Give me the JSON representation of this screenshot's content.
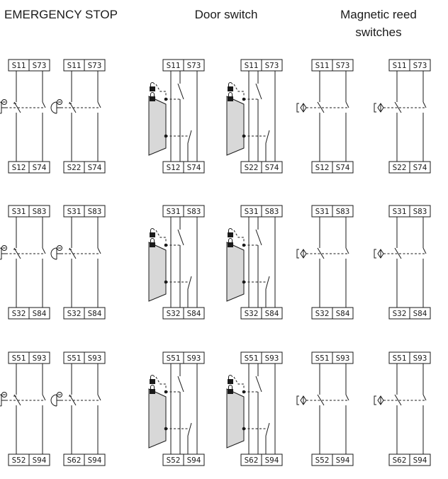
{
  "headers": {
    "emergency_stop": "EMERGENCY STOP",
    "door_switch": "Door switch",
    "reed_line1": "Magnetic reed",
    "reed_line2": "switches"
  },
  "groups": [
    {
      "type": "estop",
      "rows": [
        {
          "units": [
            {
              "top": [
                "S11",
                "S73"
              ],
              "bottom": [
                "S12",
                "S74"
              ]
            },
            {
              "top": [
                "S11",
                "S73"
              ],
              "bottom": [
                "S22",
                "S74"
              ]
            }
          ]
        },
        {
          "units": [
            {
              "top": [
                "S31",
                "S83"
              ],
              "bottom": [
                "S32",
                "S84"
              ]
            },
            {
              "top": [
                "S31",
                "S83"
              ],
              "bottom": [
                "S32",
                "S84"
              ]
            }
          ]
        },
        {
          "units": [
            {
              "top": [
                "S51",
                "S93"
              ],
              "bottom": [
                "S52",
                "S94"
              ]
            },
            {
              "top": [
                "S51",
                "S93"
              ],
              "bottom": [
                "S62",
                "S94"
              ]
            }
          ]
        }
      ]
    },
    {
      "type": "door",
      "rows": [
        {
          "units": [
            {
              "top": [
                "S11",
                "S73"
              ],
              "bottom": [
                "S12",
                "S74"
              ]
            },
            {
              "top": [
                "S11",
                "S73"
              ],
              "bottom": [
                "S22",
                "S74"
              ]
            }
          ]
        },
        {
          "units": [
            {
              "top": [
                "S31",
                "S83"
              ],
              "bottom": [
                "S32",
                "S84"
              ]
            },
            {
              "top": [
                "S31",
                "S83"
              ],
              "bottom": [
                "S32",
                "S84"
              ]
            }
          ]
        },
        {
          "units": [
            {
              "top": [
                "S51",
                "S93"
              ],
              "bottom": [
                "S52",
                "S94"
              ]
            },
            {
              "top": [
                "S51",
                "S93"
              ],
              "bottom": [
                "S62",
                "S94"
              ]
            }
          ]
        }
      ]
    },
    {
      "type": "reed",
      "rows": [
        {
          "units": [
            {
              "top": [
                "S11",
                "S73"
              ],
              "bottom": [
                "S12",
                "S74"
              ]
            },
            {
              "top": [
                "S11",
                "S73"
              ],
              "bottom": [
                "S22",
                "S74"
              ]
            }
          ]
        },
        {
          "units": [
            {
              "top": [
                "S31",
                "S83"
              ],
              "bottom": [
                "S32",
                "S84"
              ]
            },
            {
              "top": [
                "S31",
                "S83"
              ],
              "bottom": [
                "S32",
                "S84"
              ]
            }
          ]
        },
        {
          "units": [
            {
              "top": [
                "S51",
                "S93"
              ],
              "bottom": [
                "S52",
                "S94"
              ]
            },
            {
              "top": [
                "S51",
                "S93"
              ],
              "bottom": [
                "S62",
                "S94"
              ]
            }
          ]
        }
      ]
    }
  ]
}
